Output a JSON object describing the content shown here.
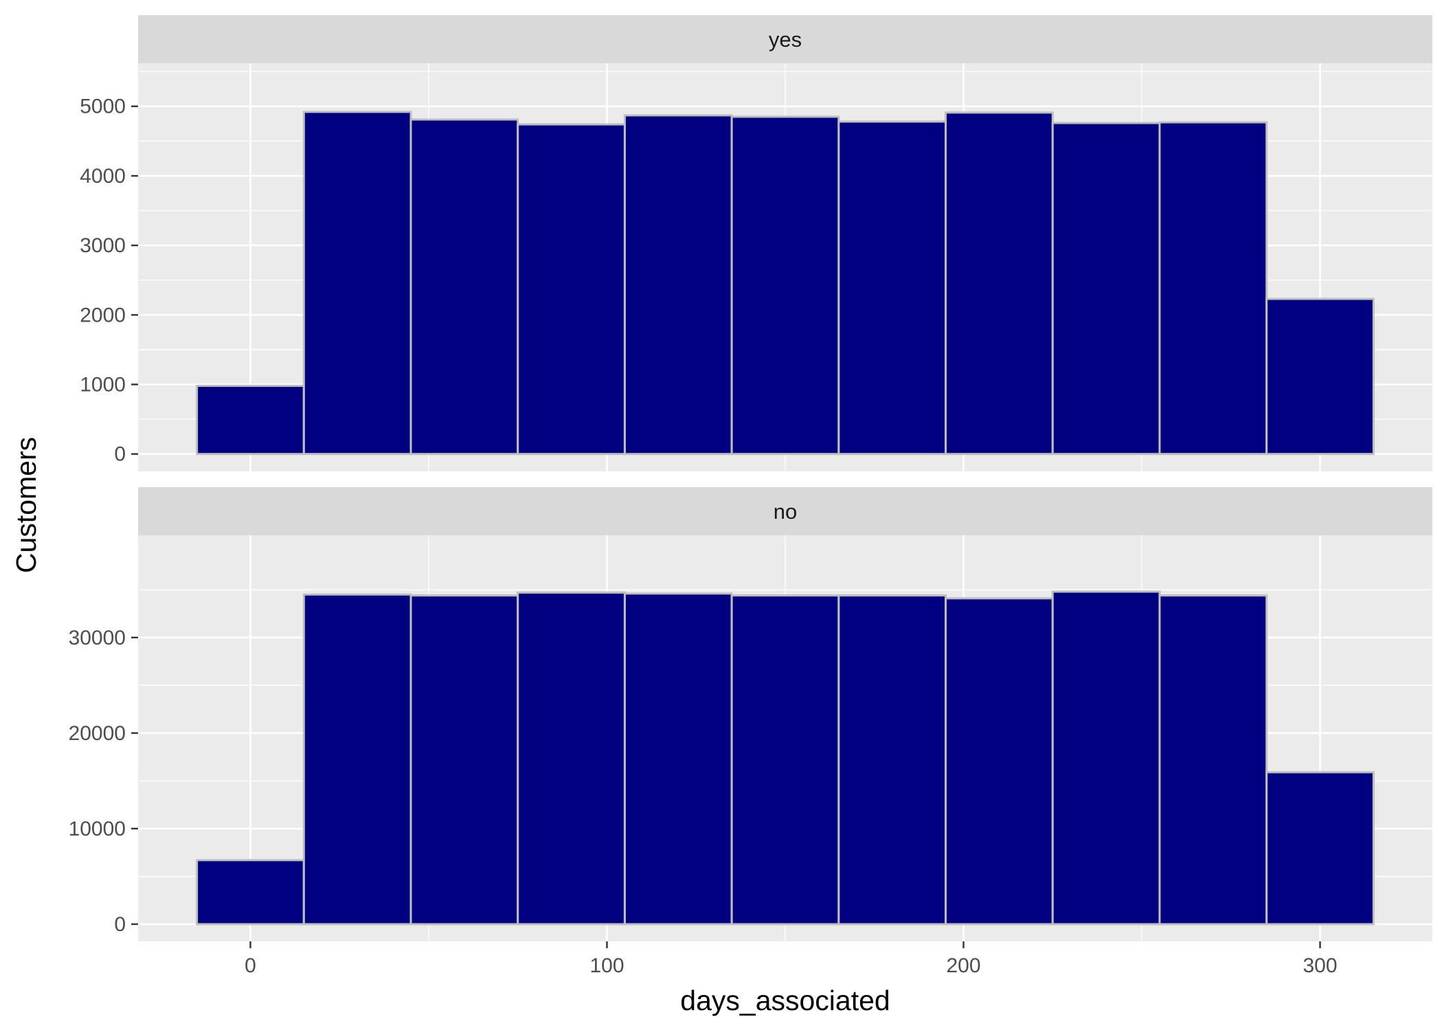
{
  "chart_data": {
    "type": "bar",
    "subtype": "faceted-histogram",
    "xlabel": "days_associated",
    "ylabel": "Customers",
    "x_ticks": [
      0,
      100,
      200,
      300
    ],
    "xlim": [
      -31.5,
      331.5
    ],
    "bin_width": 30,
    "bin_edges": [
      -15,
      15,
      45,
      75,
      105,
      135,
      165,
      195,
      225,
      255,
      285,
      315
    ],
    "grid": true,
    "legend": "none",
    "colors": {
      "fill": "#000080",
      "outline": "#bebebe",
      "panel": "#ebebeb",
      "strip": "#d9d9d9",
      "grid": "#ffffff"
    },
    "facets": [
      {
        "label": "yes",
        "ylim": [
          -250,
          5620
        ],
        "y_ticks": [
          0,
          1000,
          2000,
          3000,
          4000,
          5000
        ],
        "values": [
          980,
          4920,
          4810,
          4740,
          4870,
          4850,
          4780,
          4910,
          4760,
          4770,
          2230
        ]
      },
      {
        "label": "no",
        "ylim": [
          -1800,
          40700
        ],
        "y_ticks": [
          0,
          10000,
          20000,
          30000
        ],
        "values": [
          6700,
          34500,
          34400,
          34700,
          34600,
          34400,
          34400,
          34100,
          34800,
          34400,
          15900
        ]
      }
    ]
  }
}
